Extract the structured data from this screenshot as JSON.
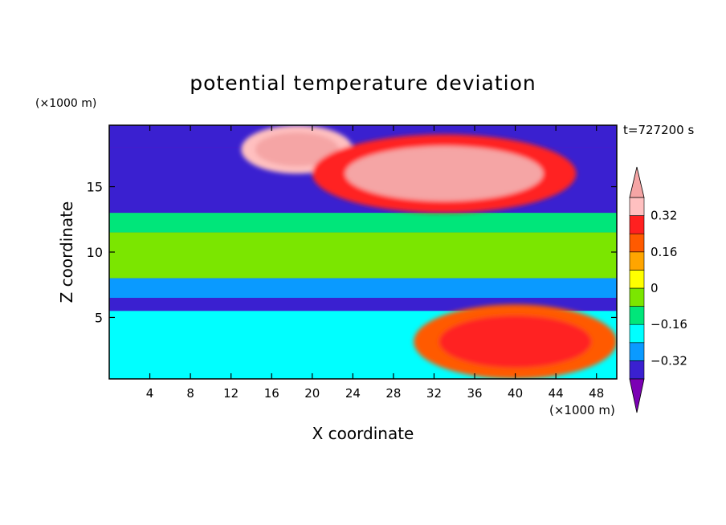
{
  "chart_data": {
    "type": "heatmap",
    "title": "potential temperature deviation",
    "xlabel": "X coordinate",
    "ylabel": "Z coordinate",
    "x_unit": "(×1000 m)",
    "y_unit": "(×1000 m)",
    "time_label": "t=727200 s",
    "xlim": [
      0,
      50
    ],
    "ylim": [
      0.3,
      19.7
    ],
    "x_ticks": [
      4,
      8,
      12,
      16,
      20,
      24,
      28,
      32,
      36,
      40,
      44,
      48
    ],
    "y_ticks": [
      5,
      10,
      15
    ],
    "colorbar": {
      "tick_labels": [
        "0.32",
        "0.16",
        "0",
        "−0.16",
        "−0.32"
      ],
      "tick_values": [
        0.32,
        0.16,
        0.0,
        -0.16,
        -0.32
      ],
      "levels": [
        -0.4,
        -0.32,
        -0.24,
        -0.16,
        -0.08,
        0.0,
        0.08,
        0.16,
        0.24,
        0.32,
        0.4
      ],
      "colors": [
        "#7b00b4",
        "#3a20d0",
        "#0a9aff",
        "#00ffff",
        "#00e67a",
        "#7be600",
        "#ffff00",
        "#ffa500",
        "#ff5a00",
        "#ff2020",
        "#ffc0c0",
        "#f5a5a5"
      ],
      "extend": "both"
    },
    "field_summary": {
      "z_bands": [
        {
          "z": [
            18,
            19.7
          ],
          "value": -0.4
        },
        {
          "z": [
            13,
            18
          ],
          "value": -0.36
        },
        {
          "z": [
            11.5,
            13
          ],
          "value": -0.12
        },
        {
          "z": [
            8,
            11.5
          ],
          "value": -0.05
        },
        {
          "z": [
            6.5,
            8
          ],
          "value": -0.3
        },
        {
          "z": [
            5.5,
            6.5
          ],
          "value": -0.38
        },
        {
          "z": [
            0.3,
            5.5
          ],
          "value": -0.2
        }
      ],
      "warm_regions": [
        {
          "x": [
            13,
            24
          ],
          "z": [
            16,
            19.7
          ],
          "value": 0.45
        },
        {
          "x": [
            20,
            46
          ],
          "z": [
            13,
            19
          ],
          "value": 0.42
        },
        {
          "x": [
            30,
            50
          ],
          "z": [
            0.3,
            6
          ],
          "value": 0.3
        }
      ]
    }
  }
}
